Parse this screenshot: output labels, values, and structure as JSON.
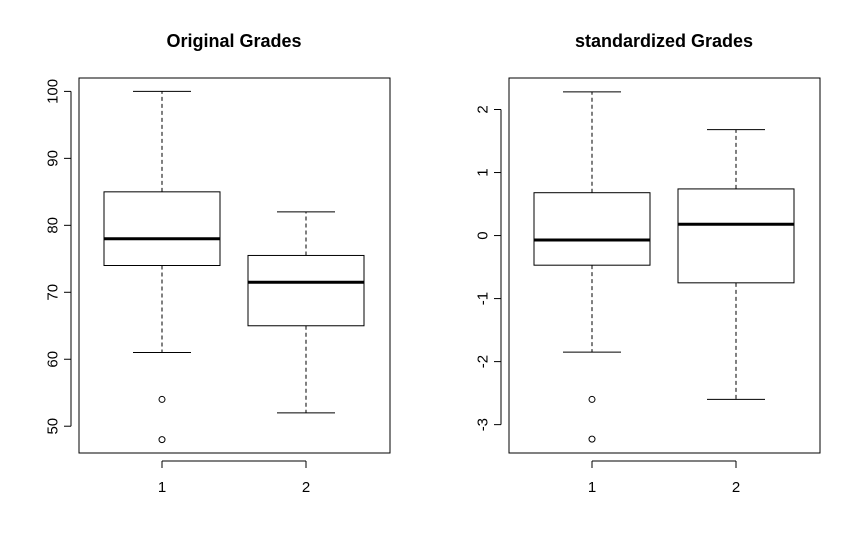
{
  "chart_data": [
    {
      "type": "boxplot",
      "title": "Original Grades",
      "categories": [
        "1",
        "2"
      ],
      "ylim": [
        46,
        102
      ],
      "yticks": [
        "50",
        "60",
        "70",
        "80",
        "90",
        "100"
      ],
      "ytick_values": [
        50,
        60,
        70,
        80,
        90,
        100
      ],
      "boxes": [
        {
          "whisker_low": 61,
          "q1": 74,
          "median": 78,
          "q3": 85,
          "whisker_high": 100,
          "outliers": [
            54,
            48
          ]
        },
        {
          "whisker_low": 52,
          "q1": 65,
          "median": 71.5,
          "q3": 75.5,
          "whisker_high": 82,
          "outliers": []
        }
      ]
    },
    {
      "type": "boxplot",
      "title": "standardized Grades",
      "categories": [
        "1",
        "2"
      ],
      "ylim": [
        -3.45,
        2.5
      ],
      "yticks": [
        "-3",
        "-2",
        "-1",
        "0",
        "1",
        "2"
      ],
      "ytick_values": [
        -3,
        -2,
        -1,
        0,
        1,
        2
      ],
      "boxes": [
        {
          "whisker_low": -1.85,
          "q1": -0.47,
          "median": -0.07,
          "q3": 0.68,
          "whisker_high": 2.28,
          "outliers": [
            -2.6,
            -3.23
          ]
        },
        {
          "whisker_low": -2.6,
          "q1": -0.75,
          "median": 0.18,
          "q3": 0.74,
          "whisker_high": 1.68,
          "outliers": []
        }
      ]
    }
  ]
}
